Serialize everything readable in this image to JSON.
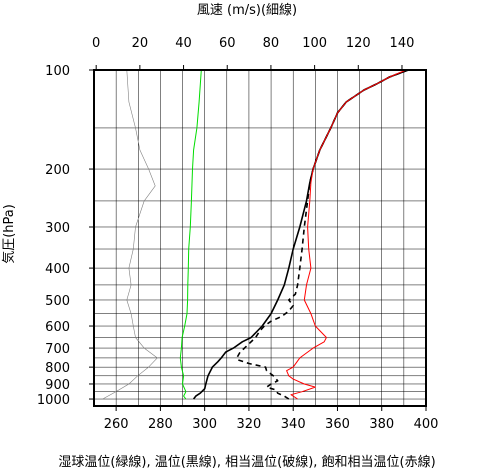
{
  "chart_data": {
    "type": "line",
    "top_axis_title": "風速 (m/s)(細線)",
    "y_axis_title": "気圧(hPa)",
    "bottom_axis_title": "湿球温位(緑線), 温位(黒線), 相当温位(破線), 飽和相当温位(赤線)",
    "x_bottom": {
      "range": [
        250,
        400
      ],
      "ticks": [
        260,
        280,
        300,
        320,
        340,
        360,
        380,
        400
      ],
      "unit": "K"
    },
    "x_top": {
      "range": [
        -1,
        151
      ],
      "ticks": [
        0,
        20,
        40,
        60,
        80,
        100,
        120,
        140
      ],
      "unit": "m/s"
    },
    "y": {
      "scale": "log",
      "range": [
        1050,
        100
      ],
      "ticks": [
        100,
        200,
        300,
        400,
        500,
        600,
        700,
        800,
        900,
        1000
      ]
    },
    "grid": true,
    "gridlines_bottom": [
      260,
      270,
      280,
      290,
      300,
      310,
      320,
      330,
      340,
      350,
      360,
      370,
      380,
      390
    ],
    "gridlines_p": [
      150,
      200,
      250,
      300,
      350,
      400,
      450,
      500,
      550,
      600,
      650,
      700,
      750,
      800,
      850,
      900,
      950,
      1000
    ],
    "series": [
      {
        "name": "風速",
        "axis": "top",
        "color": "#808080",
        "stroke_width": 0.6,
        "dash": "",
        "points": [
          {
            "p": 1000,
            "v": 3
          },
          {
            "p": 950,
            "v": 9
          },
          {
            "p": 900,
            "v": 15
          },
          {
            "p": 850,
            "v": 19
          },
          {
            "p": 800,
            "v": 24
          },
          {
            "p": 750,
            "v": 28
          },
          {
            "p": 700,
            "v": 22
          },
          {
            "p": 650,
            "v": 18
          },
          {
            "p": 600,
            "v": 17
          },
          {
            "p": 550,
            "v": 16
          },
          {
            "p": 500,
            "v": 14
          },
          {
            "p": 450,
            "v": 16
          },
          {
            "p": 400,
            "v": 15
          },
          {
            "p": 350,
            "v": 17
          },
          {
            "p": 300,
            "v": 18
          },
          {
            "p": 250,
            "v": 22
          },
          {
            "p": 225,
            "v": 27
          },
          {
            "p": 200,
            "v": 24
          },
          {
            "p": 175,
            "v": 20
          },
          {
            "p": 150,
            "v": 18
          },
          {
            "p": 125,
            "v": 15
          },
          {
            "p": 100,
            "v": 14
          }
        ]
      },
      {
        "name": "湿球温位",
        "axis": "bottom",
        "color": "#00dd00",
        "stroke_width": 1.0,
        "dash": "",
        "points": [
          {
            "p": 1000,
            "v": 291.5
          },
          {
            "p": 980,
            "v": 290.5
          },
          {
            "p": 950,
            "v": 291.5
          },
          {
            "p": 900,
            "v": 290.0
          },
          {
            "p": 850,
            "v": 290.5
          },
          {
            "p": 800,
            "v": 289.5
          },
          {
            "p": 750,
            "v": 289.0
          },
          {
            "p": 700,
            "v": 289.5
          },
          {
            "p": 650,
            "v": 289.8
          },
          {
            "p": 600,
            "v": 291.0
          },
          {
            "p": 550,
            "v": 292.0
          },
          {
            "p": 500,
            "v": 292.3
          },
          {
            "p": 450,
            "v": 292.4
          },
          {
            "p": 400,
            "v": 292.6
          },
          {
            "p": 350,
            "v": 292.8
          },
          {
            "p": 300,
            "v": 293.5
          },
          {
            "p": 250,
            "v": 294.0
          },
          {
            "p": 200,
            "v": 294.5
          },
          {
            "p": 175,
            "v": 295.0
          },
          {
            "p": 150,
            "v": 296.5
          },
          {
            "p": 125,
            "v": 297.5
          },
          {
            "p": 100,
            "v": 298.5
          }
        ]
      },
      {
        "name": "温位",
        "axis": "bottom",
        "color": "#000000",
        "stroke_width": 1.6,
        "dash": "",
        "points": [
          {
            "p": 1000,
            "v": 295.0
          },
          {
            "p": 980,
            "v": 296.0
          },
          {
            "p": 960,
            "v": 298.0
          },
          {
            "p": 930,
            "v": 300.0
          },
          {
            "p": 900,
            "v": 300.5
          },
          {
            "p": 850,
            "v": 301.5
          },
          {
            "p": 800,
            "v": 303.5
          },
          {
            "p": 770,
            "v": 306.0
          },
          {
            "p": 750,
            "v": 307.5
          },
          {
            "p": 720,
            "v": 309.5
          },
          {
            "p": 700,
            "v": 313.0
          },
          {
            "p": 670,
            "v": 317.0
          },
          {
            "p": 650,
            "v": 321.0
          },
          {
            "p": 600,
            "v": 326.0
          },
          {
            "p": 550,
            "v": 330.0
          },
          {
            "p": 500,
            "v": 333.0
          },
          {
            "p": 450,
            "v": 336.0
          },
          {
            "p": 400,
            "v": 338.0
          },
          {
            "p": 350,
            "v": 340.0
          },
          {
            "p": 300,
            "v": 343.0
          },
          {
            "p": 250,
            "v": 346.0
          },
          {
            "p": 220,
            "v": 347.5
          },
          {
            "p": 200,
            "v": 349.0
          },
          {
            "p": 175,
            "v": 352.0
          },
          {
            "p": 150,
            "v": 357.0
          },
          {
            "p": 135,
            "v": 360.0
          },
          {
            "p": 125,
            "v": 364.0
          },
          {
            "p": 115,
            "v": 372.0
          },
          {
            "p": 110,
            "v": 378.0
          },
          {
            "p": 105,
            "v": 383.5
          },
          {
            "p": 100,
            "v": 392.0
          }
        ]
      },
      {
        "name": "相当温位",
        "axis": "bottom",
        "color": "#000000",
        "stroke_width": 1.6,
        "dash": "5,4",
        "points": [
          {
            "p": 1000,
            "v": 338.0
          },
          {
            "p": 980,
            "v": 336.0
          },
          {
            "p": 960,
            "v": 333.0
          },
          {
            "p": 940,
            "v": 332.5
          },
          {
            "p": 920,
            "v": 328.0
          },
          {
            "p": 900,
            "v": 330.0
          },
          {
            "p": 880,
            "v": 333.0
          },
          {
            "p": 850,
            "v": 331.0
          },
          {
            "p": 820,
            "v": 328.0
          },
          {
            "p": 800,
            "v": 327.5
          },
          {
            "p": 780,
            "v": 320.0
          },
          {
            "p": 760,
            "v": 315.0
          },
          {
            "p": 750,
            "v": 314.5
          },
          {
            "p": 720,
            "v": 316.0
          },
          {
            "p": 700,
            "v": 318.0
          },
          {
            "p": 680,
            "v": 320.0
          },
          {
            "p": 650,
            "v": 323.0
          },
          {
            "p": 620,
            "v": 325.0
          },
          {
            "p": 600,
            "v": 327.0
          },
          {
            "p": 580,
            "v": 330.0
          },
          {
            "p": 560,
            "v": 335.0
          },
          {
            "p": 540,
            "v": 338.0
          },
          {
            "p": 520,
            "v": 340.0
          },
          {
            "p": 500,
            "v": 338.0
          },
          {
            "p": 480,
            "v": 341.0
          },
          {
            "p": 450,
            "v": 342.0
          },
          {
            "p": 400,
            "v": 343.0
          },
          {
            "p": 350,
            "v": 344.0
          },
          {
            "p": 300,
            "v": 345.0
          },
          {
            "p": 250,
            "v": 346.5
          },
          {
            "p": 220,
            "v": 347.5
          },
          {
            "p": 200,
            "v": 349.0
          },
          {
            "p": 175,
            "v": 352.0
          },
          {
            "p": 150,
            "v": 357.0
          },
          {
            "p": 135,
            "v": 360.0
          },
          {
            "p": 125,
            "v": 364.0
          },
          {
            "p": 115,
            "v": 372.0
          },
          {
            "p": 110,
            "v": 378.0
          },
          {
            "p": 105,
            "v": 383.5
          },
          {
            "p": 100,
            "v": 392.0
          }
        ]
      },
      {
        "name": "飽和相当温位",
        "axis": "bottom",
        "color": "#ff0000",
        "stroke_width": 1.0,
        "dash": "",
        "points": [
          {
            "p": 1000,
            "v": 342.0
          },
          {
            "p": 970,
            "v": 339.0
          },
          {
            "p": 950,
            "v": 344.0
          },
          {
            "p": 920,
            "v": 350.0
          },
          {
            "p": 900,
            "v": 345.0
          },
          {
            "p": 870,
            "v": 340.0
          },
          {
            "p": 850,
            "v": 338.0
          },
          {
            "p": 820,
            "v": 337.0
          },
          {
            "p": 800,
            "v": 340.0
          },
          {
            "p": 750,
            "v": 343.0
          },
          {
            "p": 700,
            "v": 349.0
          },
          {
            "p": 670,
            "v": 354.0
          },
          {
            "p": 650,
            "v": 355.0
          },
          {
            "p": 600,
            "v": 350.0
          },
          {
            "p": 550,
            "v": 348.0
          },
          {
            "p": 500,
            "v": 345.0
          },
          {
            "p": 450,
            "v": 346.0
          },
          {
            "p": 400,
            "v": 348.0
          },
          {
            "p": 350,
            "v": 347.0
          },
          {
            "p": 300,
            "v": 346.5
          },
          {
            "p": 250,
            "v": 347.5
          },
          {
            "p": 220,
            "v": 348.0
          },
          {
            "p": 200,
            "v": 349.0
          },
          {
            "p": 175,
            "v": 352.0
          },
          {
            "p": 150,
            "v": 357.0
          },
          {
            "p": 135,
            "v": 360.0
          },
          {
            "p": 125,
            "v": 364.0
          },
          {
            "p": 115,
            "v": 372.0
          },
          {
            "p": 110,
            "v": 378.0
          },
          {
            "p": 105,
            "v": 383.5
          },
          {
            "p": 100,
            "v": 391.0
          }
        ]
      }
    ]
  }
}
